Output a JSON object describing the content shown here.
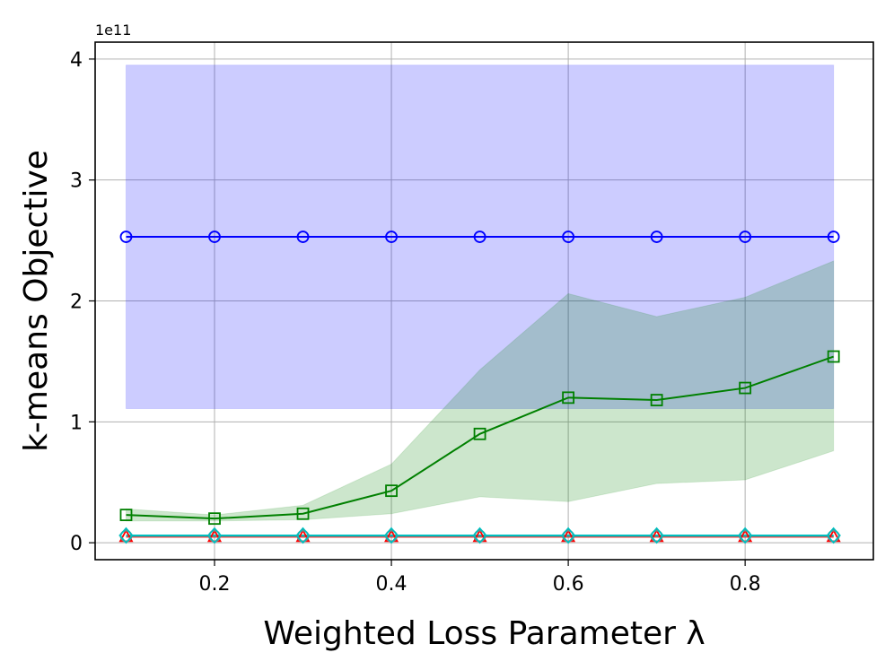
{
  "chart_data": {
    "type": "line",
    "xlabel": "Weighted Loss Parameter λ",
    "ylabel": "k-means Objective",
    "y_exponent_label": "1e11",
    "y_scale": 100000000000.0,
    "xlim": [
      0.065,
      0.945
    ],
    "ylim": [
      -0.14,
      4.14
    ],
    "xticks": [
      0.2,
      0.4,
      0.6,
      0.8
    ],
    "xtick_labels": [
      "0.2",
      "0.4",
      "0.6",
      "0.8"
    ],
    "yticks": [
      0,
      1,
      2,
      3,
      4
    ],
    "ytick_labels": [
      "0",
      "1",
      "2",
      "3",
      "4"
    ],
    "grid": true,
    "x": [
      0.1,
      0.2,
      0.3,
      0.4,
      0.5,
      0.6,
      0.7,
      0.8,
      0.9
    ],
    "series": [
      {
        "color": "#0000ff",
        "marker": "circle",
        "values": [
          2.53,
          2.53,
          2.53,
          2.53,
          2.53,
          2.53,
          2.53,
          2.53,
          2.53
        ],
        "band_low": [
          1.11,
          1.11,
          1.11,
          1.11,
          1.11,
          1.11,
          1.11,
          1.11,
          1.11
        ],
        "band_high": [
          3.95,
          3.95,
          3.95,
          3.95,
          3.95,
          3.95,
          3.95,
          3.95,
          3.95
        ]
      },
      {
        "color": "#008000",
        "marker": "square",
        "values": [
          0.23,
          0.2,
          0.24,
          0.43,
          0.9,
          1.2,
          1.18,
          1.28,
          1.54
        ],
        "band_low": [
          0.18,
          0.18,
          0.19,
          0.24,
          0.38,
          0.34,
          0.49,
          0.52,
          0.76
        ],
        "band_high": [
          0.28,
          0.23,
          0.31,
          0.65,
          1.43,
          2.06,
          1.87,
          2.03,
          2.33
        ]
      },
      {
        "color": "#ff0000",
        "marker": "triangle",
        "values": [
          0.05,
          0.05,
          0.05,
          0.05,
          0.05,
          0.05,
          0.05,
          0.05,
          0.05
        ]
      },
      {
        "color": "#808080",
        "marker": "circle",
        "values": [
          0.055,
          0.055,
          0.055,
          0.055,
          0.055,
          0.055,
          0.055,
          0.055,
          0.055
        ]
      },
      {
        "color": "#00bfbf",
        "marker": "diamond",
        "values": [
          0.06,
          0.06,
          0.06,
          0.06,
          0.06,
          0.06,
          0.06,
          0.06,
          0.06
        ]
      }
    ]
  }
}
